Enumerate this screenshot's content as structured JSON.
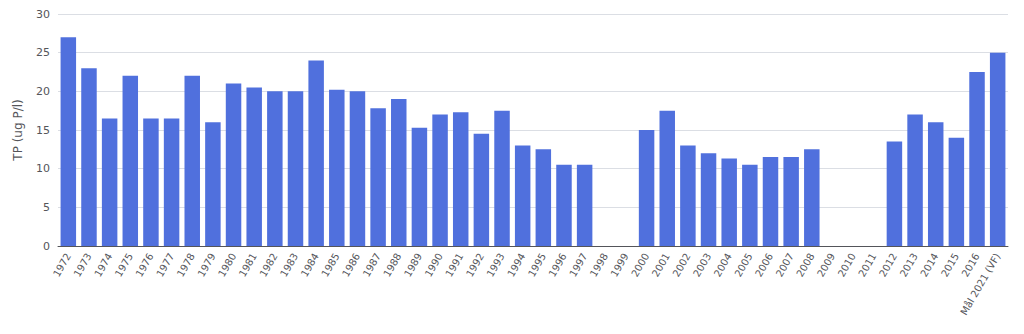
{
  "chart_data": {
    "type": "bar",
    "categories": [
      "1972",
      "1973",
      "1974",
      "1975",
      "1976",
      "1977",
      "1978",
      "1979",
      "1980",
      "1981",
      "1982",
      "1983",
      "1984",
      "1985",
      "1986",
      "1987",
      "1988",
      "1989",
      "1990",
      "1991",
      "1992",
      "1993",
      "1994",
      "1995",
      "1996",
      "1997",
      "1998",
      "1999",
      "2000",
      "2001",
      "2002",
      "2003",
      "2004",
      "2005",
      "2006",
      "2007",
      "2008",
      "2009",
      "2010",
      "2011",
      "2012",
      "2013",
      "2014",
      "2015",
      "2016",
      "Mål 2021 (VF)"
    ],
    "values": [
      27.0,
      23.0,
      16.5,
      22.0,
      16.5,
      16.5,
      22.0,
      16.0,
      21.0,
      20.5,
      20.0,
      20.0,
      24.0,
      20.2,
      20.0,
      17.8,
      19.0,
      15.3,
      17.0,
      17.3,
      14.5,
      17.5,
      13.0,
      12.5,
      10.5,
      10.5,
      null,
      null,
      15.0,
      17.5,
      13.0,
      12.0,
      11.3,
      10.5,
      11.5,
      11.5,
      12.5,
      null,
      null,
      null,
      13.5,
      17.0,
      16.0,
      14.0,
      22.5,
      25.0
    ],
    "ylabel": "TP (ug P/l)",
    "ylim": [
      0,
      30
    ],
    "yticks": [
      0,
      5,
      10,
      15,
      20,
      25,
      30
    ],
    "grid": true
  }
}
